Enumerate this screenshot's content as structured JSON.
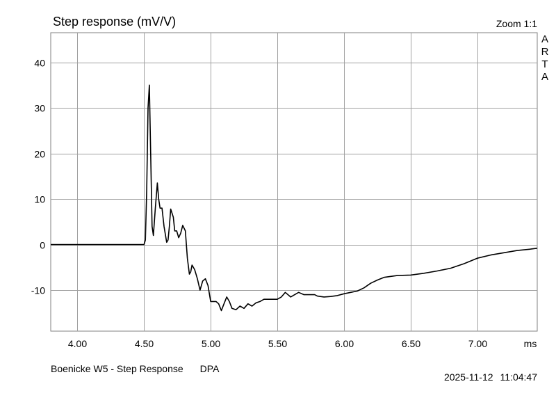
{
  "title": "Step response (mV/V)",
  "zoom": "Zoom 1:1",
  "vertical_label": [
    "A",
    "R",
    "T",
    "A"
  ],
  "footer": {
    "name": "Boenicke W5 - Step Response",
    "type": "DPA",
    "date": "2025-11-12",
    "time": "11:04:47"
  },
  "chart_data": {
    "type": "line",
    "title": "Step response (mV/V)",
    "xlabel": "ms",
    "ylabel": "",
    "xlim": [
      3.8,
      7.45
    ],
    "ylim": [
      -19,
      46.5
    ],
    "grid": true,
    "x_ticks": [
      {
        "value": 4.0,
        "label": "4.00"
      },
      {
        "value": 4.5,
        "label": "4.50"
      },
      {
        "value": 5.0,
        "label": "5.00"
      },
      {
        "value": 5.5,
        "label": "5.50"
      },
      {
        "value": 6.0,
        "label": "6.00"
      },
      {
        "value": 6.5,
        "label": "6.50"
      },
      {
        "value": 7.0,
        "label": "7.00"
      }
    ],
    "x_unit_label": "ms",
    "y_ticks": [
      {
        "value": 40,
        "label": "40"
      },
      {
        "value": 30,
        "label": "30"
      },
      {
        "value": 20,
        "label": "20"
      },
      {
        "value": 10,
        "label": "10"
      },
      {
        "value": 0,
        "label": "0"
      },
      {
        "value": -10,
        "label": "-10"
      }
    ],
    "series": [
      {
        "color": "#000000",
        "x": [
          3.8,
          4.0,
          4.3,
          4.5,
          4.51,
          4.52,
          4.53,
          4.54,
          4.55,
          4.56,
          4.57,
          4.585,
          4.6,
          4.61,
          4.62,
          4.635,
          4.65,
          4.67,
          4.68,
          4.69,
          4.7,
          4.72,
          4.73,
          4.745,
          4.76,
          4.775,
          4.79,
          4.81,
          4.825,
          4.84,
          4.85,
          4.86,
          4.88,
          4.9,
          4.92,
          4.94,
          4.96,
          4.98,
          5.0,
          5.02,
          5.04,
          5.06,
          5.08,
          5.1,
          5.12,
          5.14,
          5.16,
          5.19,
          5.22,
          5.25,
          5.28,
          5.31,
          5.34,
          5.37,
          5.4,
          5.45,
          5.5,
          5.53,
          5.56,
          5.6,
          5.63,
          5.66,
          5.7,
          5.74,
          5.78,
          5.8,
          5.85,
          5.9,
          5.95,
          6.0,
          6.05,
          6.1,
          6.15,
          6.2,
          6.25,
          6.3,
          6.4,
          6.5,
          6.6,
          6.7,
          6.8,
          6.9,
          7.0,
          7.1,
          7.2,
          7.3,
          7.4,
          7.45
        ],
        "y": [
          0,
          0,
          0,
          0,
          1,
          12,
          30,
          35,
          20,
          4,
          2,
          8,
          13.5,
          10,
          8,
          8,
          4,
          0.5,
          1,
          4,
          7.8,
          6,
          3,
          3,
          1.5,
          2.5,
          4.2,
          3,
          -3,
          -6.5,
          -6,
          -4.5,
          -5.5,
          -7.5,
          -10,
          -8,
          -7.5,
          -9,
          -12.5,
          -12.5,
          -12.5,
          -13,
          -14.5,
          -13,
          -11.5,
          -12.5,
          -14,
          -14.3,
          -13.5,
          -14,
          -13,
          -13.5,
          -12.8,
          -12.5,
          -12,
          -12,
          -12,
          -11.5,
          -10.5,
          -11.5,
          -11,
          -10.5,
          -11,
          -11,
          -11,
          -11.3,
          -11.5,
          -11.4,
          -11.2,
          -10.8,
          -10.5,
          -10.2,
          -9.5,
          -8.5,
          -7.8,
          -7.2,
          -6.8,
          -6.7,
          -6.3,
          -5.8,
          -5.2,
          -4.2,
          -3.0,
          -2.3,
          -1.8,
          -1.3,
          -1.0,
          -0.8
        ]
      }
    ]
  }
}
